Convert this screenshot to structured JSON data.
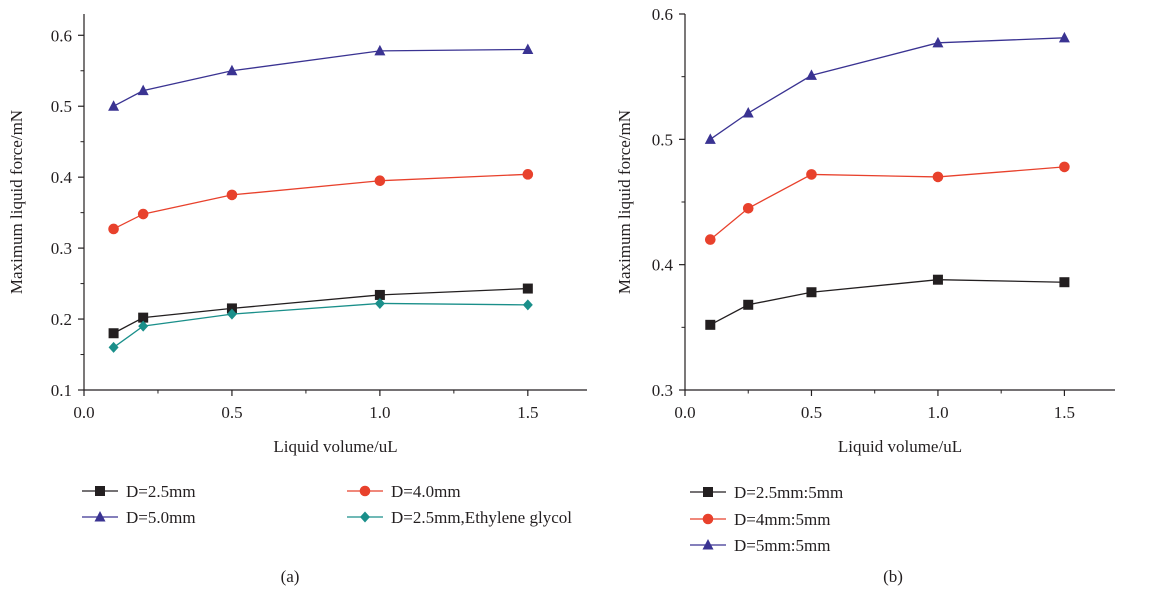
{
  "chart_data": [
    {
      "type": "line",
      "panel_label": "(a)",
      "xlabel": "Liquid volume/uL",
      "ylabel": "Maximum liquid force/mN",
      "xlim": [
        0,
        1.7
      ],
      "ylim": [
        0.1,
        0.63
      ],
      "xticks": [
        0.0,
        0.5,
        1.0,
        1.5
      ],
      "xtick_labels": [
        "0.0",
        "0.5",
        "1.0",
        "1.5"
      ],
      "yticks": [
        0.1,
        0.2,
        0.3,
        0.4,
        0.5,
        0.6
      ],
      "ytick_labels": [
        "0.1",
        "0.2",
        "0.3",
        "0.4",
        "0.5",
        "0.6"
      ],
      "grid": false,
      "legend_position": "bottom",
      "series": [
        {
          "name": "D=2.5mm",
          "marker": "square",
          "color": "#231f20",
          "x": [
            0.1,
            0.2,
            0.5,
            1.0,
            1.5
          ],
          "y": [
            0.18,
            0.202,
            0.215,
            0.234,
            0.243
          ]
        },
        {
          "name": "D=4.0mm",
          "marker": "circle",
          "color": "#e8412c",
          "x": [
            0.1,
            0.2,
            0.5,
            1.0,
            1.5
          ],
          "y": [
            0.327,
            0.348,
            0.375,
            0.395,
            0.404
          ]
        },
        {
          "name": "D=5.0mm",
          "marker": "triangle",
          "color": "#3a3392",
          "x": [
            0.1,
            0.2,
            0.5,
            1.0,
            1.5
          ],
          "y": [
            0.5,
            0.522,
            0.55,
            0.578,
            0.58
          ]
        },
        {
          "name": "D=2.5mm,Ethylene glycol",
          "marker": "diamond",
          "color": "#1a8f8a",
          "x": [
            0.1,
            0.2,
            0.5,
            1.0,
            1.5
          ],
          "y": [
            0.16,
            0.19,
            0.207,
            0.222,
            0.22
          ]
        }
      ]
    },
    {
      "type": "line",
      "panel_label": "(b)",
      "xlabel": "Liquid volume/uL",
      "ylabel": "Maximum liquid force/mN",
      "xlim": [
        0,
        1.7
      ],
      "ylim": [
        0.3,
        0.6
      ],
      "xticks": [
        0.0,
        0.5,
        1.0,
        1.5
      ],
      "xtick_labels": [
        "0.0",
        "0.5",
        "1.0",
        "1.5"
      ],
      "yticks": [
        0.3,
        0.4,
        0.5,
        0.6
      ],
      "ytick_labels": [
        "0.3",
        "0.4",
        "0.5",
        "0.6"
      ],
      "grid": false,
      "legend_position": "bottom",
      "series": [
        {
          "name": "D=2.5mm:5mm",
          "marker": "square",
          "color": "#231f20",
          "x": [
            0.1,
            0.25,
            0.5,
            1.0,
            1.5
          ],
          "y": [
            0.352,
            0.368,
            0.378,
            0.388,
            0.386
          ]
        },
        {
          "name": "D=4mm:5mm",
          "marker": "circle",
          "color": "#e8412c",
          "x": [
            0.1,
            0.25,
            0.5,
            1.0,
            1.5
          ],
          "y": [
            0.42,
            0.445,
            0.472,
            0.47,
            0.478
          ]
        },
        {
          "name": "D=5mm:5mm",
          "marker": "triangle",
          "color": "#3a3392",
          "x": [
            0.1,
            0.25,
            0.5,
            1.0,
            1.5
          ],
          "y": [
            0.5,
            0.521,
            0.551,
            0.577,
            0.581
          ]
        }
      ]
    }
  ]
}
